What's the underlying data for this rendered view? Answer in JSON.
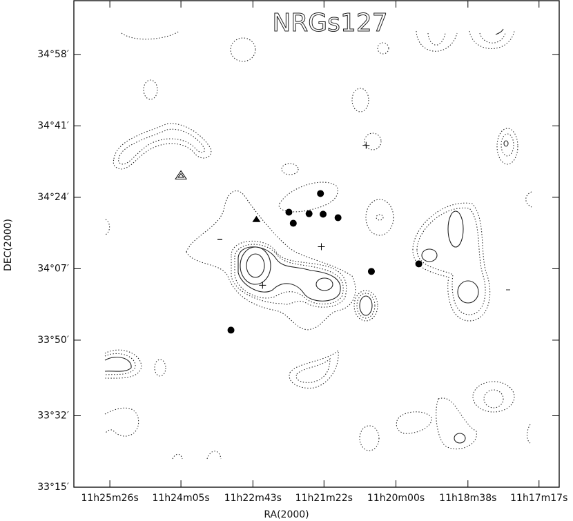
{
  "chart_data": {
    "type": "scatter",
    "title": "NRGs127",
    "x_label": "RA(2000)",
    "y_label": "DEC(2000)",
    "xlim": [
      41167,
      40614
    ],
    "ylim": [
      33.25,
      35.18
    ],
    "xticks": [
      {
        "value": 41126,
        "label": "11h25m26s"
      },
      {
        "value": 41045,
        "label": "11h24m05s"
      },
      {
        "value": 40963,
        "label": "11h22m43s"
      },
      {
        "value": 40882,
        "label": "11h21m22s"
      },
      {
        "value": 40800,
        "label": "11h20m00s"
      },
      {
        "value": 40718,
        "label": "11h18m38s"
      },
      {
        "value": 40637,
        "label": "11h17m17s"
      }
    ],
    "yticks": [
      {
        "value": 34.9667,
        "label": "34°58′"
      },
      {
        "value": 34.6833,
        "label": "34°41′"
      },
      {
        "value": 34.4,
        "label": "34°24′"
      },
      {
        "value": 34.1167,
        "label": "34°07′"
      },
      {
        "value": 33.8333,
        "label": "33°50′"
      },
      {
        "value": 33.5333,
        "label": "33°32′"
      },
      {
        "value": 33.25,
        "label": "33°15′"
      }
    ],
    "series": [
      {
        "marker": "filled-circle",
        "color": "#000000",
        "x": [
          40886,
          40922,
          40899,
          40883,
          40866,
          40917,
          40828,
          40774,
          40988
        ],
        "values": [
          34.415,
          34.341,
          34.335,
          34.333,
          34.319,
          34.297,
          34.106,
          34.136,
          33.873
        ]
      },
      {
        "marker": "filled-triangle",
        "color": "#000000",
        "x": [
          40959
        ],
        "values": [
          34.313
        ]
      },
      {
        "marker": "open-triangle",
        "color": "#000000",
        "x": [
          41045
        ],
        "values": [
          34.486
        ]
      },
      {
        "marker": "cross",
        "color": "#000000",
        "x": [
          40834,
          40885,
          40952
        ],
        "values": [
          34.606,
          34.204,
          34.051
        ]
      }
    ]
  }
}
